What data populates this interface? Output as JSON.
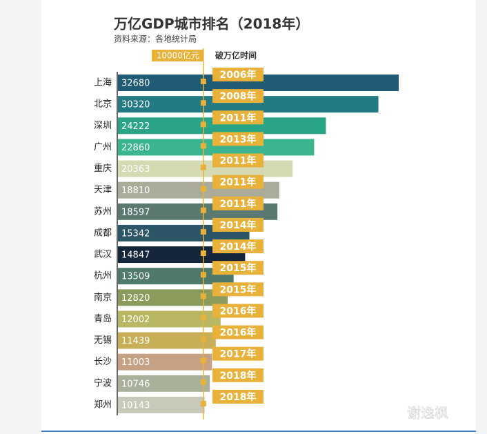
{
  "chart_data": {
    "type": "bar",
    "orientation": "horizontal",
    "title": "万亿GDP城市排名（2018年）",
    "subtitle": "资料来源：各地统计局",
    "categories": [
      "上海",
      "北京",
      "深圳",
      "广州",
      "重庆",
      "天津",
      "苏州",
      "成都",
      "武汉",
      "杭州",
      "南京",
      "青岛",
      "无锡",
      "长沙",
      "宁波",
      "郑州"
    ],
    "values": [
      32680,
      30320,
      24222,
      22860,
      20363,
      18810,
      18597,
      15342,
      14847,
      13509,
      12820,
      12002,
      11439,
      11003,
      10746,
      10143
    ],
    "colors": [
      "#1f5b74",
      "#237a82",
      "#2aa487",
      "#3ab58f",
      "#d6dab3",
      "#aaab99",
      "#5a7a71",
      "#2d5568",
      "#15263a",
      "#4f7a6b",
      "#8b9b5c",
      "#bab763",
      "#c8af57",
      "#c6a183",
      "#a9b19b",
      "#c9c9ba"
    ],
    "xlim": [
      0,
      35000
    ],
    "reference_line": {
      "value": 10000,
      "label": "10000亿元",
      "color": "#e8b23a"
    },
    "years_header": "破万亿时间",
    "break_years": [
      "2006年",
      "2008年",
      "2011年",
      "2013年",
      "2011年",
      "2011年",
      "2011年",
      "2014年",
      "2014年",
      "2015年",
      "2015年",
      "2016年",
      "2016年",
      "2017年",
      "2018年",
      "2018年"
    ]
  },
  "watermark": "谢逸枫"
}
